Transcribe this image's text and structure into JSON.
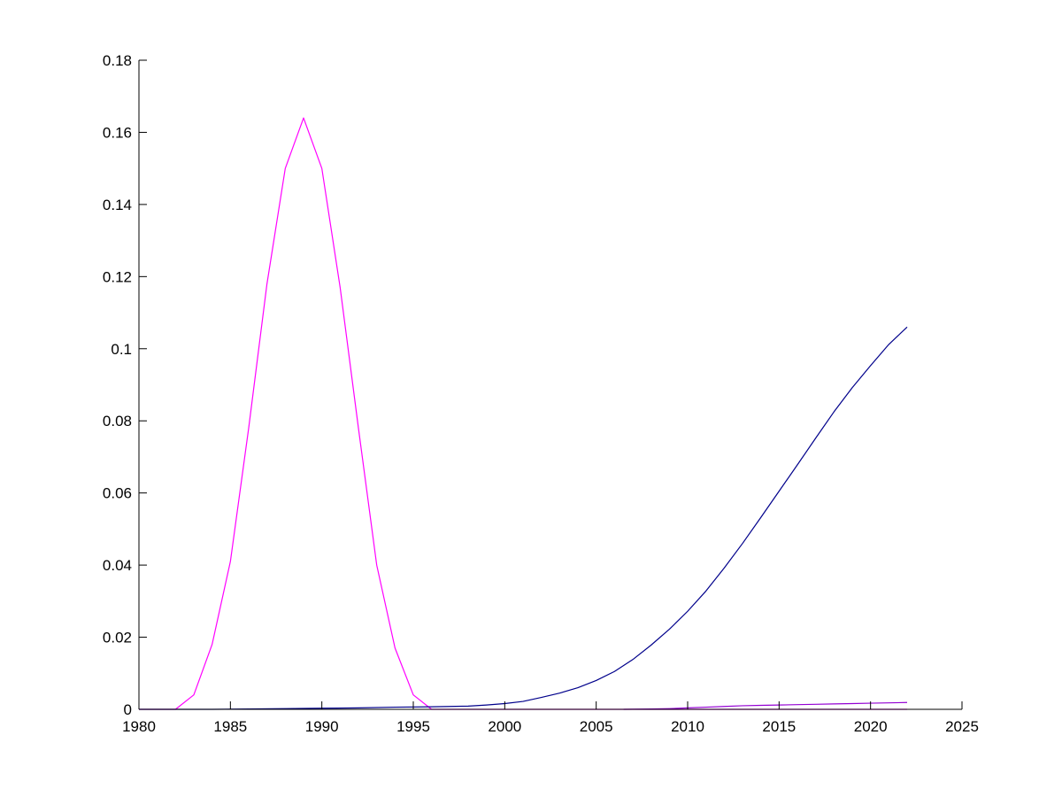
{
  "chart_data": {
    "type": "line",
    "title": "",
    "xlabel": "",
    "ylabel": "",
    "xlim": [
      1980,
      2025
    ],
    "ylim": [
      0,
      0.18
    ],
    "grid": false,
    "legend": "none",
    "x_ticks": [
      1980,
      1985,
      1990,
      1995,
      2000,
      2005,
      2010,
      2015,
      2020,
      2025
    ],
    "x_tick_labels": [
      "1980",
      "1985",
      "1990",
      "1995",
      "2000",
      "2005",
      "2010",
      "2015",
      "2020",
      "2025"
    ],
    "y_ticks": [
      0,
      0.02,
      0.04,
      0.06,
      0.08,
      0.1,
      0.12,
      0.14,
      0.16,
      0.18
    ],
    "y_tick_labels": [
      "0",
      "0.02",
      "0.04",
      "0.06",
      "0.08",
      "0.1",
      "0.12",
      "0.14",
      "0.16",
      "0.18"
    ],
    "series": [
      {
        "color": "#ff00ff",
        "x": [
          1980,
          1981,
          1982,
          1983,
          1984,
          1985,
          1986,
          1987,
          1988,
          1989,
          1990,
          1991,
          1992,
          1993,
          1994,
          1995,
          1996,
          1997,
          1998,
          1999,
          2000,
          2001,
          2002,
          2003,
          2004,
          2005,
          2006,
          2007,
          2008,
          2009,
          2010,
          2011,
          2012,
          2013,
          2014,
          2015,
          2016,
          2017,
          2018,
          2019,
          2020,
          2021,
          2022
        ],
        "values": [
          0,
          0,
          0,
          0.004,
          0.018,
          0.041,
          0.078,
          0.118,
          0.15,
          0.164,
          0.15,
          0.117,
          0.078,
          0.04,
          0.017,
          0.004,
          0,
          0,
          0,
          0,
          0,
          0,
          0,
          0,
          0,
          0,
          0,
          0,
          0,
          0,
          0,
          0,
          0,
          0,
          0,
          0,
          0,
          0,
          0,
          0,
          0,
          0,
          0
        ]
      },
      {
        "color": "#00008b",
        "x": [
          1980,
          1982,
          1984,
          1986,
          1988,
          1990,
          1992,
          1994,
          1996,
          1998,
          1999,
          2000,
          2001,
          2002,
          2003,
          2004,
          2005,
          2006,
          2007,
          2008,
          2009,
          2010,
          2011,
          2012,
          2013,
          2014,
          2015,
          2016,
          2017,
          2018,
          2019,
          2020,
          2021,
          2022
        ],
        "values": [
          0,
          0,
          0,
          0.0001,
          0.0002,
          0.0003,
          0.0004,
          0.0006,
          0.0007,
          0.0009,
          0.0012,
          0.0016,
          0.0022,
          0.0033,
          0.0045,
          0.006,
          0.008,
          0.0105,
          0.0138,
          0.0178,
          0.0222,
          0.0272,
          0.0328,
          0.0392,
          0.046,
          0.0532,
          0.0605,
          0.0678,
          0.0752,
          0.0825,
          0.0892,
          0.0953,
          0.1012,
          0.106
        ]
      },
      {
        "color": "#9400d3",
        "x": [
          2006.5,
          2008,
          2009,
          2010,
          2011,
          2012,
          2013,
          2014,
          2015,
          2016,
          2017,
          2018,
          2019,
          2020,
          2021,
          2022
        ],
        "values": [
          0,
          0.0001,
          0.0002,
          0.0004,
          0.0006,
          0.0008,
          0.001,
          0.0011,
          0.0012,
          0.0013,
          0.0014,
          0.0015,
          0.0016,
          0.0017,
          0.0018,
          0.0019
        ]
      }
    ]
  }
}
